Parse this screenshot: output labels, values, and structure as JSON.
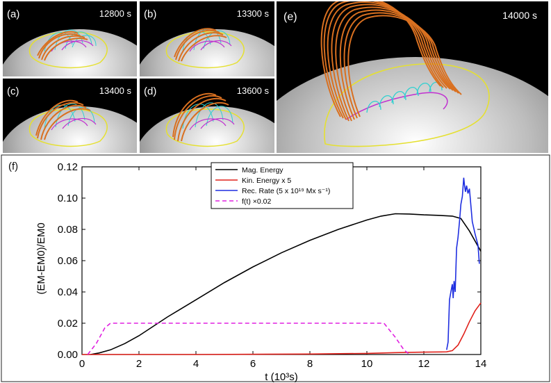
{
  "panels": [
    {
      "label": "(a)",
      "time": "12800 s"
    },
    {
      "label": "(b)",
      "time": "13300 s"
    },
    {
      "label": "(c)",
      "time": "13400 s"
    },
    {
      "label": "(d)",
      "time": "13600 s"
    },
    {
      "label": "(e)",
      "time": "14000 s"
    }
  ],
  "plot_label": "(f)",
  "chart_data": {
    "type": "line",
    "xlabel": "t (10³s)",
    "ylabel": "(Eₘ-Eₘ₀)/Eₘ₀",
    "ylabel_display": "(EM-EM0)/EM0",
    "xlim": [
      0,
      14
    ],
    "ylim": [
      0,
      0.12
    ],
    "xticks": [
      "0",
      "2",
      "4",
      "6",
      "8",
      "10",
      "12",
      "14"
    ],
    "yticks": [
      "0.00",
      "0.02",
      "0.04",
      "0.06",
      "0.08",
      "0.10",
      "0.12"
    ],
    "legend_position": "top-right",
    "series": [
      {
        "name": "Mag. Energy",
        "color": "#000000",
        "dash": "solid",
        "x": [
          0.3,
          0.6,
          1.0,
          1.5,
          2.0,
          3.0,
          4.0,
          5.0,
          6.0,
          7.0,
          8.0,
          9.0,
          10.0,
          10.5,
          11.0,
          11.5,
          12.0,
          12.5,
          13.0,
          13.3,
          13.6,
          14.0
        ],
        "y": [
          0.0,
          0.001,
          0.003,
          0.007,
          0.012,
          0.024,
          0.035,
          0.046,
          0.056,
          0.065,
          0.073,
          0.08,
          0.086,
          0.0885,
          0.09,
          0.0898,
          0.0893,
          0.089,
          0.0885,
          0.087,
          0.079,
          0.066
        ]
      },
      {
        "name": "Kin. Energy x 5",
        "color": "#e0201a",
        "dash": "solid",
        "x": [
          0.0,
          4.0,
          8.0,
          10.0,
          11.0,
          12.0,
          12.8,
          13.0,
          13.2,
          13.4,
          13.6,
          13.8,
          14.0
        ],
        "y": [
          0.0,
          0.0,
          0.0003,
          0.0007,
          0.0012,
          0.0015,
          0.0017,
          0.0025,
          0.006,
          0.013,
          0.021,
          0.028,
          0.033
        ]
      },
      {
        "name": "Rec. Rate (5 x 10¹⁹ Mx s⁻¹)",
        "color": "#1e2ee0",
        "dash": "solid",
        "x": [
          12.8,
          12.85,
          12.9,
          12.95,
          13.0,
          13.03,
          13.06,
          13.1,
          13.15,
          13.2,
          13.25,
          13.3,
          13.35,
          13.4,
          13.43,
          13.46,
          13.5,
          13.55,
          13.6,
          13.7,
          13.8,
          13.9,
          13.95
        ],
        "y": [
          0.003,
          0.008,
          0.035,
          0.04,
          0.045,
          0.036,
          0.047,
          0.04,
          0.068,
          0.075,
          0.085,
          0.096,
          0.101,
          0.113,
          0.108,
          0.104,
          0.108,
          0.103,
          0.106,
          0.085,
          0.077,
          0.07,
          0.058
        ]
      },
      {
        "name": "f(t) ×0.02",
        "color": "#e020e0",
        "dash": "dashed",
        "x": [
          0.2,
          0.5,
          0.8,
          1.0,
          3.0,
          6.0,
          9.0,
          10.6,
          11.0,
          11.3,
          11.5
        ],
        "y": [
          0.0,
          0.007,
          0.017,
          0.02,
          0.02,
          0.02,
          0.02,
          0.02,
          0.011,
          0.003,
          0.0
        ]
      }
    ]
  }
}
